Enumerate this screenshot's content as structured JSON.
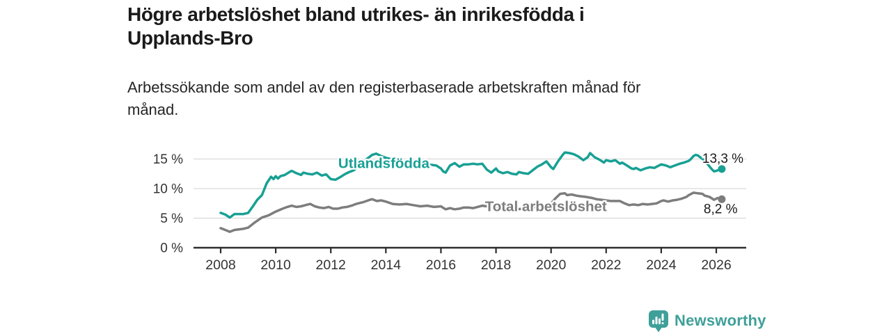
{
  "header": {
    "title_lines": [
      "Högre arbetslöshet bland utrikes- än inrikesfödda i",
      "Upplands-Bro"
    ],
    "subtitle_lines": [
      "Arbetssökande som andel av den registerbaserade arbetskraften månad för",
      "månad."
    ]
  },
  "footer": {
    "brand_name": "Newsworthy"
  },
  "colors": {
    "foreign_line": "#18A094",
    "total_line": "#7D7D7D",
    "grid": "#DADADA",
    "axis": "#2D2D2D",
    "tick_text": "#333333",
    "value_label": "#1A1A1A",
    "brand": "#3FA09A"
  },
  "chart_data": {
    "type": "line",
    "title": "Högre arbetslöshet bland utrikes- än inrikesfödda i Upplands-Bro",
    "subtitle": "Arbetssökande som andel av den registerbaserade arbetskraften månad för månad.",
    "unit": "%",
    "x_axis": {
      "tick_values": [
        2008,
        2010,
        2012,
        2014,
        2016,
        2018,
        2020,
        2022,
        2024,
        2026
      ],
      "tick_labels": [
        "2008",
        "2010",
        "2012",
        "2014",
        "2016",
        "2018",
        "2020",
        "2022",
        "2024",
        "2026"
      ],
      "range": [
        2007.0,
        2027.1
      ]
    },
    "y_axis": {
      "tick_values": [
        0,
        5,
        10,
        15
      ],
      "tick_labels": [
        "0 %",
        "5 %",
        "10 %",
        "15 %"
      ],
      "range": [
        0,
        17.5
      ],
      "grid": true
    },
    "series": [
      {
        "name": "Utlandsfödda",
        "color_key": "foreign_line",
        "end_label": "13,3 %",
        "end_value": 13.3,
        "points": [
          [
            2008,
            5.9
          ],
          [
            2008.17,
            5.6
          ],
          [
            2008.33,
            5.1
          ],
          [
            2008.5,
            5.7
          ],
          [
            2008.67,
            5.7
          ],
          [
            2008.83,
            5.7
          ],
          [
            2009,
            5.9
          ],
          [
            2009.17,
            7.0
          ],
          [
            2009.33,
            8.1
          ],
          [
            2009.5,
            8.9
          ],
          [
            2009.67,
            10.9
          ],
          [
            2009.83,
            12.0
          ],
          [
            2009.92,
            11.6
          ],
          [
            2010,
            12.1
          ],
          [
            2010.08,
            11.7
          ],
          [
            2010.17,
            12.1
          ],
          [
            2010.33,
            12.3
          ],
          [
            2010.5,
            12.8
          ],
          [
            2010.58,
            13.0
          ],
          [
            2010.75,
            12.6
          ],
          [
            2010.92,
            12.3
          ],
          [
            2011,
            12.7
          ],
          [
            2011.17,
            12.5
          ],
          [
            2011.33,
            12.4
          ],
          [
            2011.5,
            12.7
          ],
          [
            2011.67,
            12.2
          ],
          [
            2011.83,
            12.4
          ],
          [
            2012,
            11.6
          ],
          [
            2012.17,
            11.5
          ],
          [
            2012.33,
            11.9
          ],
          [
            2012.5,
            12.4
          ],
          [
            2012.67,
            12.8
          ],
          [
            2012.83,
            13.1
          ],
          [
            2013,
            13.7
          ],
          [
            2013.25,
            14.8
          ],
          [
            2013.5,
            15.7
          ],
          [
            2013.65,
            15.9
          ],
          [
            2013.83,
            15.5
          ],
          [
            2014,
            15.2
          ],
          [
            2014.25,
            14.9
          ],
          [
            2014.5,
            14.7
          ],
          [
            2014.75,
            14.4
          ],
          [
            2015,
            14.3
          ],
          [
            2015.25,
            14.2
          ],
          [
            2015.5,
            14.1
          ],
          [
            2015.67,
            14.0
          ],
          [
            2015.83,
            13.9
          ],
          [
            2016,
            13.4
          ],
          [
            2016.08,
            12.9
          ],
          [
            2016.17,
            12.7
          ],
          [
            2016.33,
            13.9
          ],
          [
            2016.5,
            14.3
          ],
          [
            2016.67,
            13.7
          ],
          [
            2016.83,
            14.1
          ],
          [
            2017,
            14.1
          ],
          [
            2017.17,
            14.2
          ],
          [
            2017.33,
            14.1
          ],
          [
            2017.5,
            14.2
          ],
          [
            2017.67,
            13.2
          ],
          [
            2017.83,
            12.7
          ],
          [
            2018,
            13.4
          ],
          [
            2018.08,
            12.9
          ],
          [
            2018.25,
            12.6
          ],
          [
            2018.42,
            12.8
          ],
          [
            2018.58,
            12.5
          ],
          [
            2018.75,
            12.4
          ],
          [
            2018.83,
            12.8
          ],
          [
            2019,
            12.6
          ],
          [
            2019.17,
            12.5
          ],
          [
            2019.33,
            13.1
          ],
          [
            2019.5,
            13.7
          ],
          [
            2019.67,
            14.1
          ],
          [
            2019.83,
            14.6
          ],
          [
            2020,
            13.6
          ],
          [
            2020.08,
            13.3
          ],
          [
            2020.25,
            14.6
          ],
          [
            2020.42,
            15.7
          ],
          [
            2020.5,
            16.1
          ],
          [
            2020.67,
            16.0
          ],
          [
            2020.83,
            15.8
          ],
          [
            2021,
            15.4
          ],
          [
            2021.17,
            14.8
          ],
          [
            2021.33,
            15.3
          ],
          [
            2021.42,
            16.0
          ],
          [
            2021.58,
            15.3
          ],
          [
            2021.75,
            14.9
          ],
          [
            2021.92,
            14.4
          ],
          [
            2022,
            14.8
          ],
          [
            2022.17,
            14.6
          ],
          [
            2022.33,
            14.8
          ],
          [
            2022.5,
            14.2
          ],
          [
            2022.58,
            14.4
          ],
          [
            2022.75,
            13.9
          ],
          [
            2022.92,
            13.4
          ],
          [
            2023,
            13.3
          ],
          [
            2023.08,
            13.5
          ],
          [
            2023.25,
            13.1
          ],
          [
            2023.42,
            13.4
          ],
          [
            2023.58,
            13.6
          ],
          [
            2023.75,
            13.5
          ],
          [
            2023.92,
            13.9
          ],
          [
            2024,
            14.1
          ],
          [
            2024.17,
            13.9
          ],
          [
            2024.33,
            13.6
          ],
          [
            2024.5,
            13.9
          ],
          [
            2024.67,
            14.2
          ],
          [
            2024.83,
            14.4
          ],
          [
            2025,
            14.7
          ],
          [
            2025.08,
            15.0
          ],
          [
            2025.17,
            15.5
          ],
          [
            2025.25,
            15.7
          ],
          [
            2025.33,
            15.6
          ],
          [
            2025.5,
            15.0
          ],
          [
            2025.58,
            14.8
          ],
          [
            2025.67,
            14.2
          ],
          [
            2025.83,
            13.3
          ],
          [
            2025.92,
            12.9
          ],
          [
            2026,
            13.0
          ],
          [
            2026.2,
            13.3
          ]
        ]
      },
      {
        "name": "Total arbetslöshet",
        "color_key": "total_line",
        "end_label": "8,2 %",
        "end_value": 8.2,
        "points": [
          [
            2008,
            3.3
          ],
          [
            2008.17,
            3.0
          ],
          [
            2008.33,
            2.7
          ],
          [
            2008.5,
            3.0
          ],
          [
            2008.67,
            3.1
          ],
          [
            2008.83,
            3.2
          ],
          [
            2009,
            3.4
          ],
          [
            2009.25,
            4.3
          ],
          [
            2009.5,
            5.1
          ],
          [
            2009.75,
            5.5
          ],
          [
            2010,
            6.1
          ],
          [
            2010.25,
            6.6
          ],
          [
            2010.42,
            6.9
          ],
          [
            2010.58,
            7.1
          ],
          [
            2010.75,
            6.9
          ],
          [
            2010.92,
            7.0
          ],
          [
            2011.08,
            7.2
          ],
          [
            2011.25,
            7.4
          ],
          [
            2011.42,
            7.0
          ],
          [
            2011.58,
            6.8
          ],
          [
            2011.75,
            6.7
          ],
          [
            2011.92,
            6.9
          ],
          [
            2012.08,
            6.6
          ],
          [
            2012.25,
            6.6
          ],
          [
            2012.42,
            6.8
          ],
          [
            2012.58,
            6.9
          ],
          [
            2012.75,
            7.1
          ],
          [
            2012.92,
            7.4
          ],
          [
            2013.17,
            7.7
          ],
          [
            2013.42,
            8.1
          ],
          [
            2013.5,
            8.2
          ],
          [
            2013.67,
            7.9
          ],
          [
            2013.83,
            8.0
          ],
          [
            2014,
            7.8
          ],
          [
            2014.25,
            7.4
          ],
          [
            2014.5,
            7.3
          ],
          [
            2014.75,
            7.4
          ],
          [
            2015,
            7.2
          ],
          [
            2015.25,
            7.0
          ],
          [
            2015.5,
            7.1
          ],
          [
            2015.75,
            6.9
          ],
          [
            2016,
            7.0
          ],
          [
            2016.17,
            6.5
          ],
          [
            2016.33,
            6.7
          ],
          [
            2016.5,
            6.5
          ],
          [
            2016.67,
            6.6
          ],
          [
            2016.83,
            6.8
          ],
          [
            2017,
            6.8
          ],
          [
            2017.17,
            6.7
          ],
          [
            2017.33,
            6.9
          ],
          [
            2017.5,
            7.1
          ],
          [
            2017.67,
            7.0
          ],
          [
            2017.83,
            6.9
          ],
          [
            2018,
            6.8
          ],
          [
            2018.25,
            6.7
          ],
          [
            2018.5,
            6.6
          ],
          [
            2018.75,
            6.5
          ],
          [
            2019,
            6.6
          ],
          [
            2019.25,
            6.8
          ],
          [
            2019.5,
            6.9
          ],
          [
            2019.75,
            7.1
          ],
          [
            2020,
            7.5
          ],
          [
            2020.17,
            8.4
          ],
          [
            2020.33,
            9.1
          ],
          [
            2020.5,
            9.2
          ],
          [
            2020.58,
            8.9
          ],
          [
            2020.75,
            9.0
          ],
          [
            2020.92,
            8.8
          ],
          [
            2021.08,
            8.7
          ],
          [
            2021.25,
            8.6
          ],
          [
            2021.5,
            8.4
          ],
          [
            2021.65,
            8.2
          ],
          [
            2021.83,
            8.1
          ],
          [
            2022,
            8.0
          ],
          [
            2022.17,
            7.9
          ],
          [
            2022.33,
            7.9
          ],
          [
            2022.5,
            7.9
          ],
          [
            2022.67,
            7.5
          ],
          [
            2022.83,
            7.2
          ],
          [
            2023,
            7.3
          ],
          [
            2023.17,
            7.2
          ],
          [
            2023.33,
            7.4
          ],
          [
            2023.5,
            7.3
          ],
          [
            2023.67,
            7.4
          ],
          [
            2023.83,
            7.5
          ],
          [
            2024,
            7.9
          ],
          [
            2024.08,
            8.0
          ],
          [
            2024.25,
            7.8
          ],
          [
            2024.42,
            8.0
          ],
          [
            2024.58,
            8.1
          ],
          [
            2024.75,
            8.3
          ],
          [
            2024.92,
            8.6
          ],
          [
            2025,
            8.9
          ],
          [
            2025.17,
            9.3
          ],
          [
            2025.33,
            9.2
          ],
          [
            2025.5,
            9.1
          ],
          [
            2025.58,
            8.8
          ],
          [
            2025.75,
            8.6
          ],
          [
            2025.92,
            8.1
          ],
          [
            2026.05,
            8.4
          ],
          [
            2026.2,
            8.2
          ]
        ]
      }
    ],
    "series_labels": [
      {
        "text": "Utlandsfödda",
        "x": 2012.27,
        "y": 13.5
      },
      {
        "text": "Total arbetslöshet",
        "x": 2017.6,
        "y": 6.2
      }
    ],
    "legend_position": "inline-labels"
  }
}
